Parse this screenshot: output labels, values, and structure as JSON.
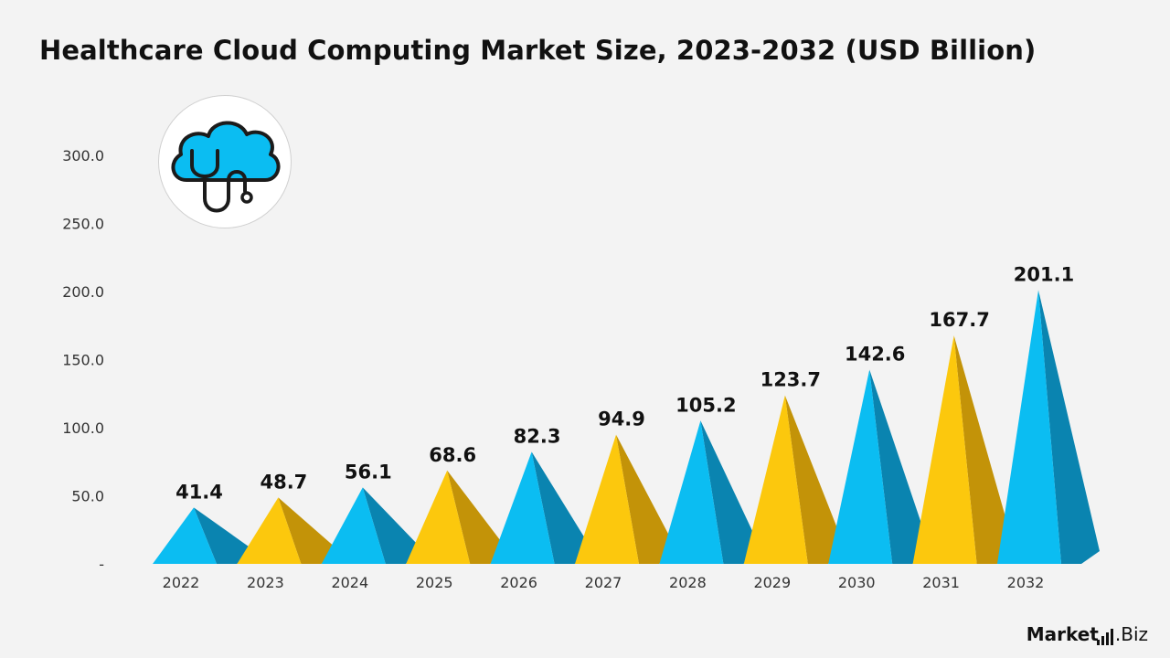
{
  "title": "Healthcare Cloud Computing Market Size, 2023-2032 (USD Billion)",
  "brand": {
    "bold": "Market",
    "light": ".Biz"
  },
  "icon": "cloud-stethoscope-icon",
  "colors": {
    "blue_front": "#0bbdf2",
    "blue_side": "#0a84b0",
    "yellow_front": "#fcc80d",
    "yellow_side": "#c39308",
    "text": "#111111",
    "axis_text": "#333333"
  },
  "chart_data": {
    "type": "bar",
    "title": "Healthcare Cloud Computing Market Size, 2023-2032 (USD Billion)",
    "categories": [
      "2022",
      "2023",
      "2024",
      "2025",
      "2026",
      "2027",
      "2028",
      "2029",
      "2030",
      "2031",
      "2032"
    ],
    "values": [
      41.4,
      48.7,
      56.1,
      68.6,
      82.3,
      94.9,
      105.2,
      123.7,
      142.6,
      167.7,
      201.1
    ],
    "data_labels": [
      "41.4",
      "48.7",
      "56.1",
      "68.6",
      "82.3",
      "94.9",
      "105.2",
      "123.7",
      "142.6",
      "167.7",
      "201.1"
    ],
    "ylim": [
      0,
      300
    ],
    "yticks": [
      0,
      50,
      100,
      150,
      200,
      250,
      300
    ],
    "ytick_labels": [
      "-",
      "50.0",
      "100.0",
      "150.0",
      "200.0",
      "250.0",
      "300.0"
    ],
    "xlabel": "",
    "ylabel": "",
    "grid": false,
    "legend": "none",
    "bar_colors": [
      "blue",
      "yellow",
      "blue",
      "yellow",
      "blue",
      "yellow",
      "blue",
      "yellow",
      "blue",
      "yellow",
      "blue"
    ]
  }
}
